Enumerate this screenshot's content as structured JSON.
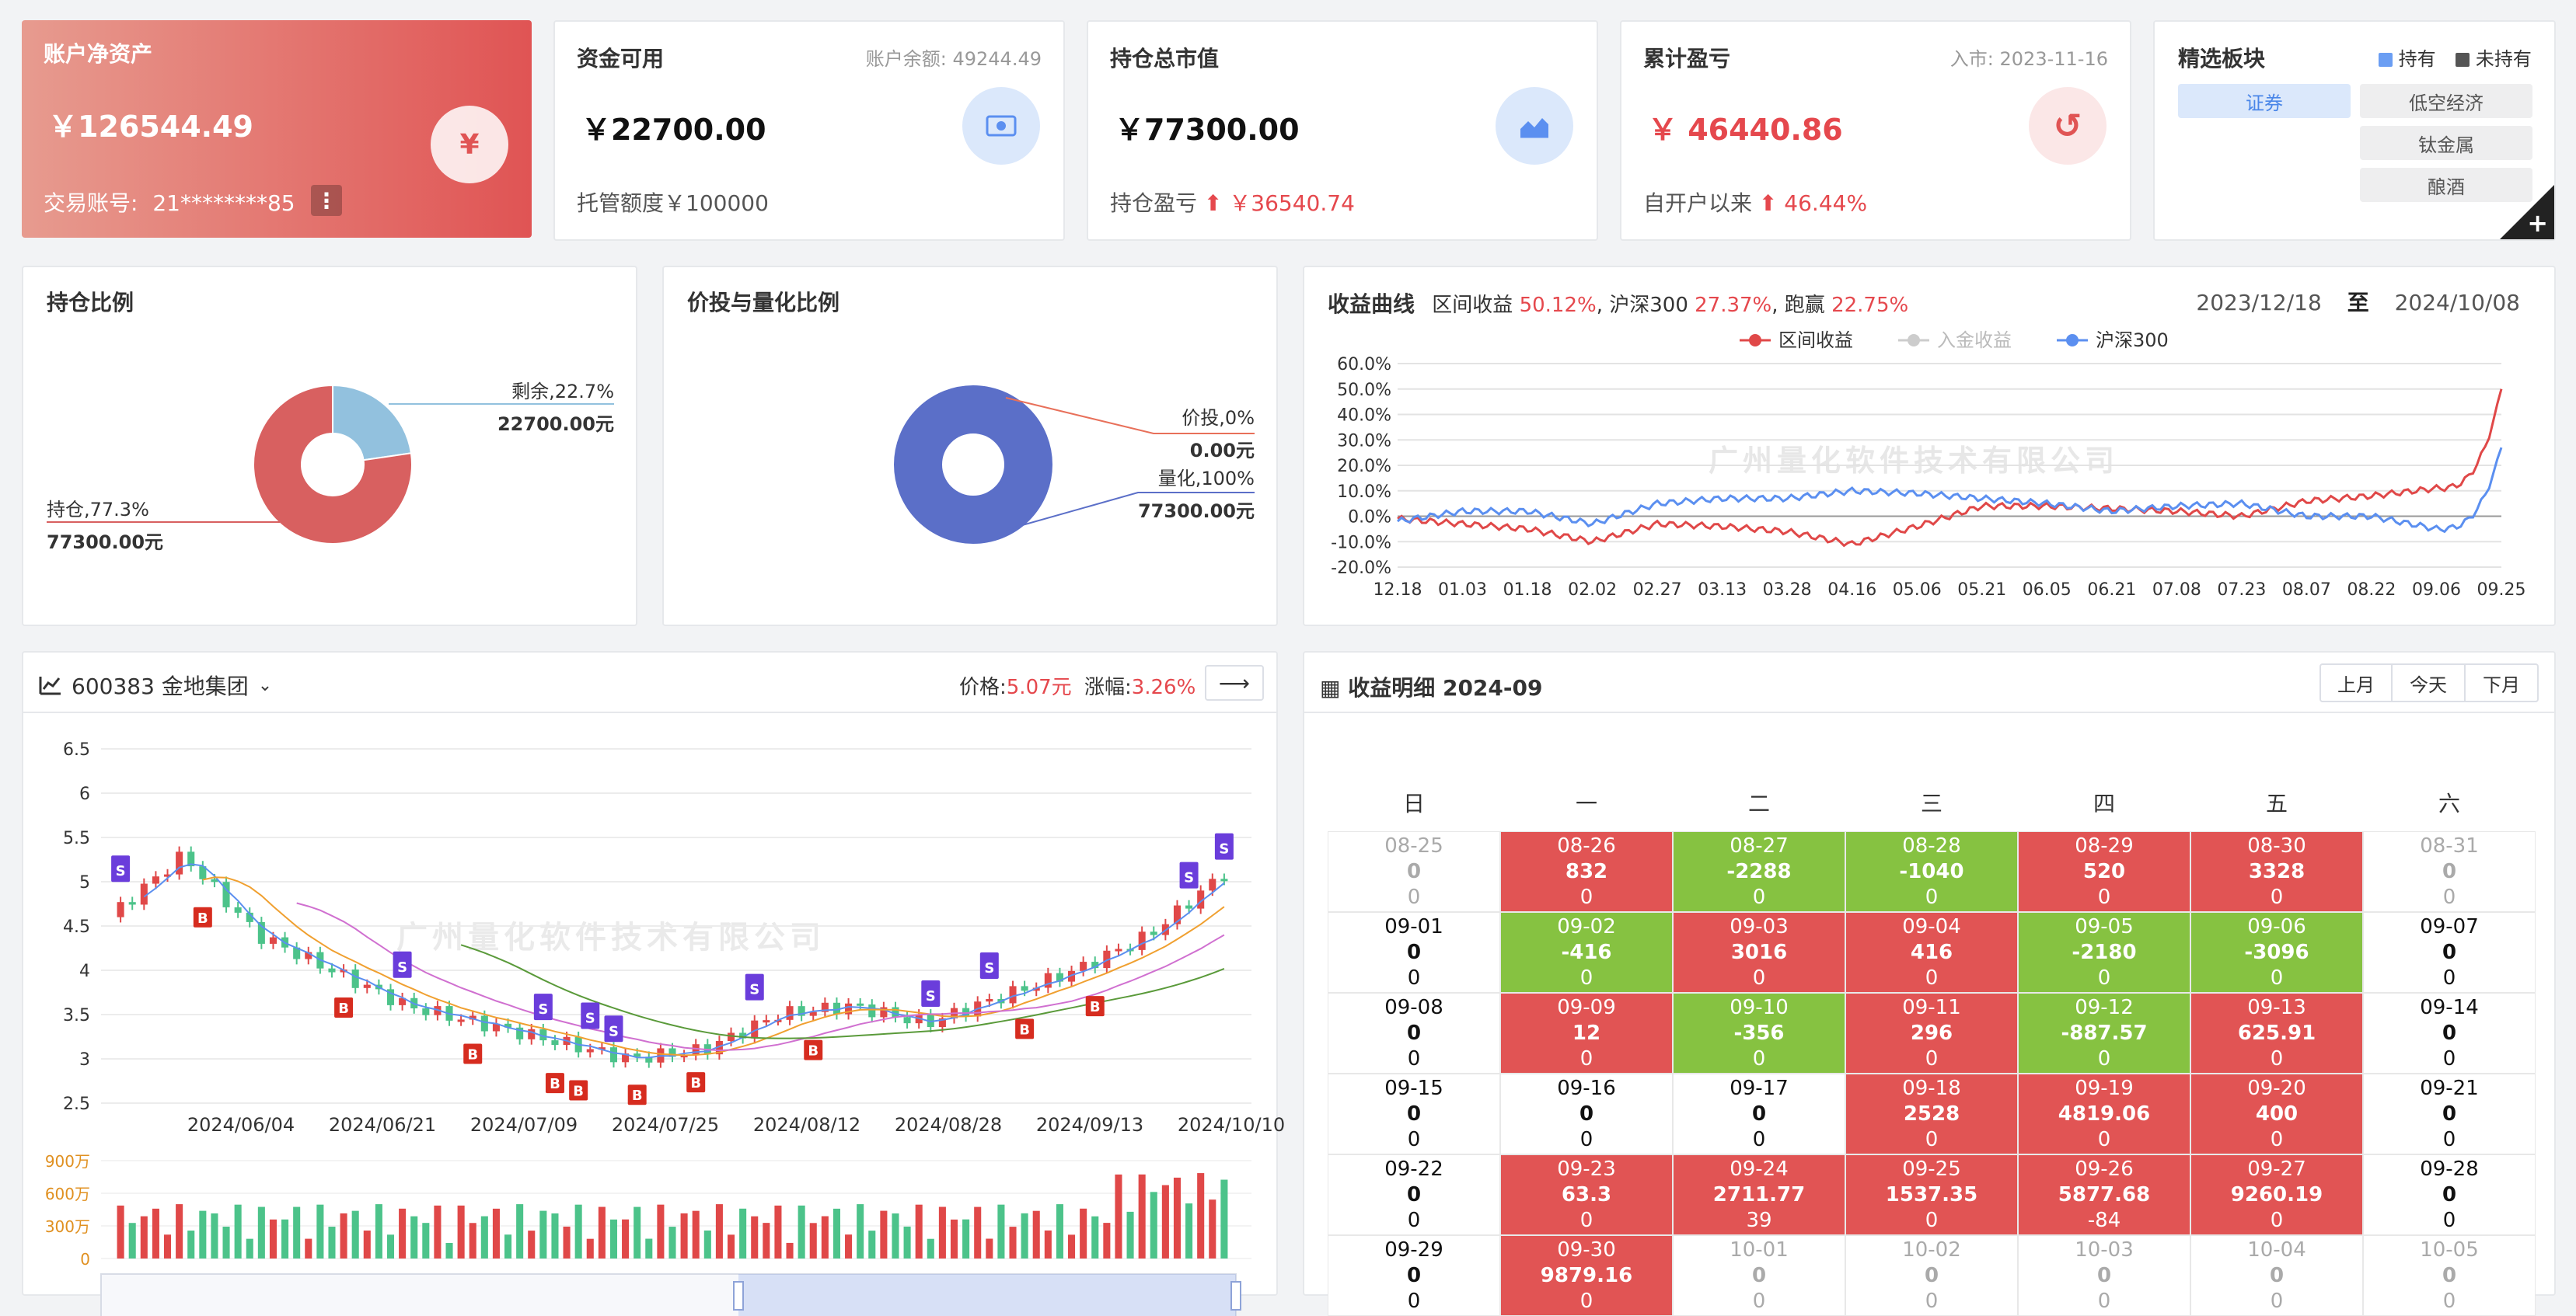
{
  "net_assets": {
    "title": "账户净资产",
    "value": "￥126544.49",
    "account_label": "交易账号:",
    "account": "21********85",
    "icon": "yen-icon"
  },
  "available": {
    "title": "资金可用",
    "balance": "账户余额: 49244.49",
    "value": "￥22700.00",
    "sub": "托管额度￥100000",
    "icon": "banknote-icon"
  },
  "position_value": {
    "title": "持仓总市值",
    "value": "￥77300.00",
    "sub_label": "持仓盈亏",
    "sub_value": "￥36540.74",
    "icon": "area-chart-icon"
  },
  "cumulative": {
    "title": "累计盈亏",
    "join": "入市: 2023-11-16",
    "value": "￥ 46440.86",
    "sub_label": "自开户以来",
    "sub_value": "46.44%",
    "icon": "refresh-icon"
  },
  "sectors": {
    "title": "精选板块",
    "legend_held": "持有",
    "legend_not_held": "未持有",
    "items": [
      "证券",
      "低空经济",
      "钛金属",
      "酿酒"
    ]
  },
  "holding_ratio": {
    "title": "持仓比例",
    "slices": [
      {
        "label": "剩余,22.7%",
        "amount": "22700.00元",
        "value": 22.7,
        "color": "#92c1de"
      },
      {
        "label": "持仓,77.3%",
        "amount": "77300.00元",
        "value": 77.3,
        "color": "#d86060"
      }
    ]
  },
  "quant_ratio": {
    "title": "价投与量化比例",
    "slices": [
      {
        "label": "价投,0%",
        "amount": "0.00元",
        "value": 0,
        "color": "#e8705a"
      },
      {
        "label": "量化,100%",
        "amount": "77300.00元",
        "value": 100,
        "color": "#5b6fc8"
      }
    ]
  },
  "returns": {
    "title": "收益曲线",
    "summary_a": "区间收益",
    "summary_a_val": "50.12%",
    "summary_b": ", 沪深300",
    "summary_b_val": "27.37%",
    "summary_c": ", 跑赢",
    "summary_c_val": "22.75%",
    "date_from": "2023/12/18",
    "date_sep": "至",
    "date_to": "2024/10/08",
    "legend": [
      "区间收益",
      "入金收益",
      "沪深300"
    ],
    "watermark": "广州量化软件技术有限公司"
  },
  "chart_data": {
    "type": "line",
    "x": [
      "12.18",
      "01.03",
      "01.18",
      "02.02",
      "02.27",
      "03.13",
      "03.28",
      "04.16",
      "05.06",
      "05.21",
      "06.05",
      "06.21",
      "07.08",
      "07.23",
      "08.07",
      "08.22",
      "09.06",
      "09.25"
    ],
    "ylim": [
      -20,
      60
    ],
    "yticks": [
      "60.0%",
      "50.0%",
      "40.0%",
      "30.0%",
      "20.0%",
      "10.0%",
      "0.0%",
      "-10.0%",
      "-20.0%"
    ],
    "series": [
      {
        "name": "区间收益",
        "color": "#e04848",
        "values": [
          -1,
          -3,
          -5,
          -10,
          -3,
          -4,
          -6,
          -11,
          -4,
          4,
          4,
          3,
          2,
          0,
          6,
          8,
          11,
          50
        ]
      },
      {
        "name": "沪深300",
        "color": "#5b8ff0",
        "values": [
          -2,
          2,
          2,
          -3,
          5,
          7,
          7,
          10,
          9,
          7,
          5,
          2,
          4,
          5,
          0,
          0,
          -5,
          27
        ]
      }
    ],
    "legend_position": "top"
  },
  "stock": {
    "code_name": "600383 金地集团",
    "price_label": "价格:",
    "price": "5.07元",
    "change_label": "涨幅:",
    "change": "3.26%",
    "yticks": [
      "6.5",
      "6",
      "5.5",
      "5",
      "4.5",
      "4",
      "3.5",
      "3",
      "2.5"
    ],
    "xticks": [
      "2024/06/04",
      "2024/06/21",
      "2024/07/09",
      "2024/07/25",
      "2024/08/12",
      "2024/08/28",
      "2024/09/13",
      "2024/10/10"
    ],
    "vol_ticks": [
      "900万",
      "600万",
      "300万",
      "0"
    ],
    "marker_buy": "B",
    "marker_sell": "S",
    "watermark": "广州量化软件技术有限公司"
  },
  "calendar": {
    "title": "收益明细 2024-09",
    "nav": [
      "上月",
      "今天",
      "下月"
    ],
    "weekdays": [
      "日",
      "一",
      "二",
      "三",
      "四",
      "五",
      "六"
    ],
    "rows": [
      [
        {
          "d": "08-25",
          "v": "0",
          "s": "0",
          "c": "grey"
        },
        {
          "d": "08-26",
          "v": "832",
          "s": "0",
          "c": "red"
        },
        {
          "d": "08-27",
          "v": "-2288",
          "s": "0",
          "c": "green"
        },
        {
          "d": "08-28",
          "v": "-1040",
          "s": "0",
          "c": "green"
        },
        {
          "d": "08-29",
          "v": "520",
          "s": "0",
          "c": "red"
        },
        {
          "d": "08-30",
          "v": "3328",
          "s": "0",
          "c": "red"
        },
        {
          "d": "08-31",
          "v": "0",
          "s": "0",
          "c": "grey"
        }
      ],
      [
        {
          "d": "09-01",
          "v": "0",
          "s": "0",
          "c": "white"
        },
        {
          "d": "09-02",
          "v": "-416",
          "s": "0",
          "c": "green"
        },
        {
          "d": "09-03",
          "v": "3016",
          "s": "0",
          "c": "red"
        },
        {
          "d": "09-04",
          "v": "416",
          "s": "0",
          "c": "red"
        },
        {
          "d": "09-05",
          "v": "-2180",
          "s": "0",
          "c": "green"
        },
        {
          "d": "09-06",
          "v": "-3096",
          "s": "0",
          "c": "green"
        },
        {
          "d": "09-07",
          "v": "0",
          "s": "0",
          "c": "white"
        }
      ],
      [
        {
          "d": "09-08",
          "v": "0",
          "s": "0",
          "c": "white"
        },
        {
          "d": "09-09",
          "v": "12",
          "s": "0",
          "c": "red"
        },
        {
          "d": "09-10",
          "v": "-356",
          "s": "0",
          "c": "green"
        },
        {
          "d": "09-11",
          "v": "296",
          "s": "0",
          "c": "red"
        },
        {
          "d": "09-12",
          "v": "-887.57",
          "s": "0",
          "c": "green"
        },
        {
          "d": "09-13",
          "v": "625.91",
          "s": "0",
          "c": "red"
        },
        {
          "d": "09-14",
          "v": "0",
          "s": "0",
          "c": "white"
        }
      ],
      [
        {
          "d": "09-15",
          "v": "0",
          "s": "0",
          "c": "white"
        },
        {
          "d": "09-16",
          "v": "0",
          "s": "0",
          "c": "white"
        },
        {
          "d": "09-17",
          "v": "0",
          "s": "0",
          "c": "white"
        },
        {
          "d": "09-18",
          "v": "2528",
          "s": "0",
          "c": "red"
        },
        {
          "d": "09-19",
          "v": "4819.06",
          "s": "0",
          "c": "red"
        },
        {
          "d": "09-20",
          "v": "400",
          "s": "0",
          "c": "red"
        },
        {
          "d": "09-21",
          "v": "0",
          "s": "0",
          "c": "white"
        }
      ],
      [
        {
          "d": "09-22",
          "v": "0",
          "s": "0",
          "c": "white"
        },
        {
          "d": "09-23",
          "v": "63.3",
          "s": "0",
          "c": "red"
        },
        {
          "d": "09-24",
          "v": "2711.77",
          "s": "39",
          "c": "red"
        },
        {
          "d": "09-25",
          "v": "1537.35",
          "s": "0",
          "c": "red"
        },
        {
          "d": "09-26",
          "v": "5877.68",
          "s": "-84",
          "c": "red"
        },
        {
          "d": "09-27",
          "v": "9260.19",
          "s": "0",
          "c": "red"
        },
        {
          "d": "09-28",
          "v": "0",
          "s": "0",
          "c": "white"
        }
      ],
      [
        {
          "d": "09-29",
          "v": "0",
          "s": "0",
          "c": "white"
        },
        {
          "d": "09-30",
          "v": "9879.16",
          "s": "0",
          "c": "red"
        },
        {
          "d": "10-01",
          "v": "0",
          "s": "0",
          "c": "grey"
        },
        {
          "d": "10-02",
          "v": "0",
          "s": "0",
          "c": "grey"
        },
        {
          "d": "10-03",
          "v": "0",
          "s": "0",
          "c": "grey"
        },
        {
          "d": "10-04",
          "v": "0",
          "s": "0",
          "c": "grey"
        },
        {
          "d": "10-05",
          "v": "0",
          "s": "0",
          "c": "grey"
        }
      ]
    ]
  }
}
